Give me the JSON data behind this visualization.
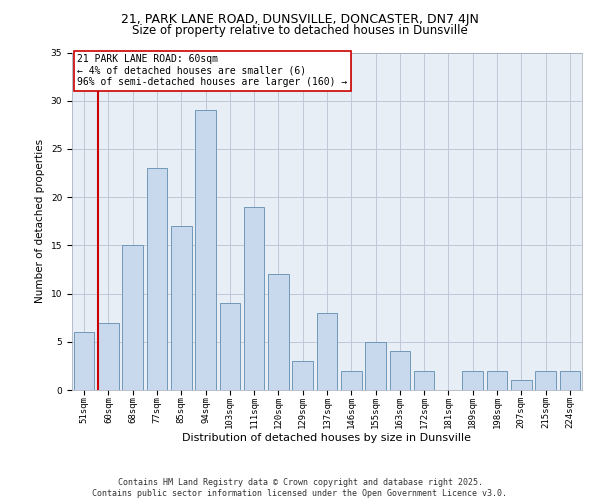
{
  "title1": "21, PARK LANE ROAD, DUNSVILLE, DONCASTER, DN7 4JN",
  "title2": "Size of property relative to detached houses in Dunsville",
  "xlabel": "Distribution of detached houses by size in Dunsville",
  "ylabel": "Number of detached properties",
  "categories": [
    "51sqm",
    "60sqm",
    "68sqm",
    "77sqm",
    "85sqm",
    "94sqm",
    "103sqm",
    "111sqm",
    "120sqm",
    "129sqm",
    "137sqm",
    "146sqm",
    "155sqm",
    "163sqm",
    "172sqm",
    "181sqm",
    "189sqm",
    "198sqm",
    "207sqm",
    "215sqm",
    "224sqm"
  ],
  "values": [
    6,
    7,
    15,
    23,
    17,
    29,
    9,
    19,
    12,
    3,
    8,
    2,
    5,
    4,
    2,
    0,
    2,
    2,
    1,
    2,
    2
  ],
  "bar_color": "#c9d9ed",
  "bar_edge_color": "#7098b8",
  "annotation_box_text": "21 PARK LANE ROAD: 60sqm\n← 4% of detached houses are smaller (6)\n96% of semi-detached houses are larger (160) →",
  "vline_color": "#cc0000",
  "box_edge_color": "#cc0000",
  "ylim": [
    0,
    35
  ],
  "yticks": [
    0,
    5,
    10,
    15,
    20,
    25,
    30,
    35
  ],
  "grid_color": "#c0c8d8",
  "bg_color": "#e8eef5",
  "footnote": "Contains HM Land Registry data © Crown copyright and database right 2025.\nContains public sector information licensed under the Open Government Licence v3.0.",
  "title_fontsize": 9,
  "subtitle_fontsize": 8.5,
  "xlabel_fontsize": 8,
  "ylabel_fontsize": 7.5,
  "tick_fontsize": 6.5,
  "annot_fontsize": 7,
  "footnote_fontsize": 6
}
